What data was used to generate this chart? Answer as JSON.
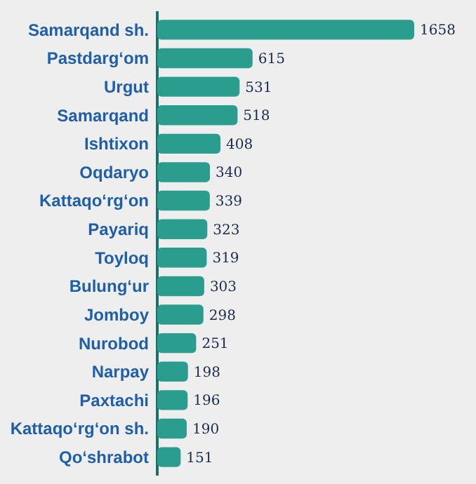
{
  "chart_data": {
    "type": "bar",
    "orientation": "horizontal",
    "data_labels": true,
    "categories": [
      "Samarqand sh.",
      "Pastdarg‘om",
      "Urgut",
      "Samarqand",
      "Ishtixon",
      "Oqdaryo",
      "Kattaqo‘rg‘on",
      "Payariq",
      "Toyloq",
      "Bulung‘ur",
      "Jomboy",
      "Nurobod",
      "Narpay",
      "Paxtachi",
      "Kattaqo‘rg‘on sh.",
      "Qo‘shrabot"
    ],
    "values": [
      1658,
      615,
      531,
      518,
      408,
      340,
      339,
      323,
      319,
      303,
      298,
      251,
      198,
      196,
      190,
      151
    ],
    "color": "#2a9d8f"
  }
}
